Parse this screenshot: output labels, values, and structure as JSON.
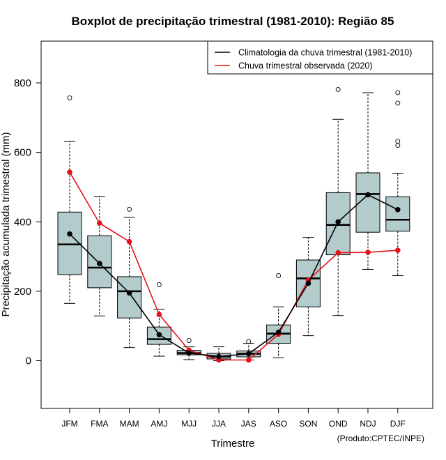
{
  "chart_data": {
    "type": "boxplot",
    "title": "Boxplot de precipitação trimestral (1981-2010): Região 85",
    "xlabel": "Trimestre",
    "ylabel": "Precipitação acumulada trimestral (mm)",
    "ylim": [
      -140,
      920
    ],
    "yticks": [
      0,
      200,
      400,
      600,
      800
    ],
    "categories": [
      "JFM",
      "FMA",
      "MAM",
      "AMJ",
      "MJJ",
      "JJA",
      "JAS",
      "ASO",
      "SON",
      "OND",
      "NDJ",
      "DJF"
    ],
    "boxes": [
      {
        "q1": 248,
        "median": 335,
        "q3": 428,
        "whisker_low": 165,
        "whisker_high": 632,
        "outliers": [
          757
        ]
      },
      {
        "q1": 210,
        "median": 268,
        "q3": 360,
        "whisker_low": 129,
        "whisker_high": 473,
        "outliers": []
      },
      {
        "q1": 123,
        "median": 200,
        "q3": 242,
        "whisker_low": 38,
        "whisker_high": 413,
        "outliers": [
          436
        ]
      },
      {
        "q1": 47,
        "median": 62,
        "q3": 97,
        "whisker_low": 13,
        "whisker_high": 148,
        "outliers": [
          219
        ]
      },
      {
        "q1": 17,
        "median": 22,
        "q3": 30,
        "whisker_low": 3,
        "whisker_high": 40,
        "outliers": [
          58
        ]
      },
      {
        "q1": 5,
        "median": 12,
        "q3": 21,
        "whisker_low": 0,
        "whisker_high": 40,
        "outliers": []
      },
      {
        "q1": 11,
        "median": 20,
        "q3": 28,
        "whisker_low": 2,
        "whisker_high": 50,
        "outliers": [
          55
        ]
      },
      {
        "q1": 50,
        "median": 78,
        "q3": 103,
        "whisker_low": 8,
        "whisker_high": 155,
        "outliers": [
          245
        ]
      },
      {
        "q1": 155,
        "median": 237,
        "q3": 290,
        "whisker_low": 72,
        "whisker_high": 355,
        "outliers": []
      },
      {
        "q1": 305,
        "median": 391,
        "q3": 484,
        "whisker_low": 130,
        "whisker_high": 695,
        "outliers": [
          781
        ]
      },
      {
        "q1": 370,
        "median": 480,
        "q3": 541,
        "whisker_low": 263,
        "whisker_high": 772,
        "outliers": []
      },
      {
        "q1": 373,
        "median": 406,
        "q3": 472,
        "whisker_low": 245,
        "whisker_high": 540,
        "outliers": [
          620,
          632,
          742,
          772
        ]
      }
    ],
    "series": [
      {
        "name": "Climatologia da chuva trimestral (1981-2010)",
        "color": "#000000",
        "values": [
          365,
          280,
          195,
          75,
          22,
          12,
          20,
          82,
          223,
          400,
          478,
          435
        ]
      },
      {
        "name": "Chuva trimestral observada (2020)",
        "color": "#e8101a",
        "values": [
          543,
          396,
          343,
          133,
          30,
          2,
          2,
          76,
          232,
          311,
          312,
          318
        ]
      }
    ],
    "legend_position": "top-right",
    "box_color": "#b3cbcb",
    "credit": "(Produto:CPTEC/INPE)"
  }
}
